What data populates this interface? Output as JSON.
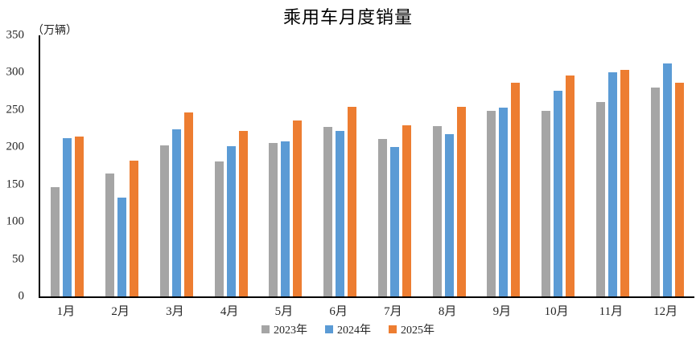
{
  "title": "乘用车月度销量",
  "axis_color": "#000000",
  "chart_data": {
    "type": "bar",
    "title": "乘用车月度销量",
    "ylabel": "（万辆）",
    "xlabel": "",
    "ylim": [
      0,
      350
    ],
    "yticks": [
      0,
      50,
      100,
      150,
      200,
      250,
      300,
      350
    ],
    "grid": false,
    "legend_position": "bottom",
    "categories": [
      "1月",
      "2月",
      "3月",
      "4月",
      "5月",
      "6月",
      "7月",
      "8月",
      "9月",
      "10月",
      "11月",
      "12月"
    ],
    "series": [
      {
        "name": "2023年",
        "color": "#A5A5A5",
        "values": [
          147,
          165,
          202,
          181,
          206,
          227,
          211,
          228,
          249,
          249,
          261,
          280
        ]
      },
      {
        "name": "2024年",
        "color": "#5B9BD5",
        "values": [
          212,
          133,
          224,
          201,
          208,
          222,
          200,
          218,
          253,
          276,
          300,
          312
        ]
      },
      {
        "name": "2025年",
        "color": "#ED7D31",
        "values": [
          214,
          182,
          247,
          222,
          236,
          254,
          229,
          254,
          287,
          296,
          304,
          286
        ]
      }
    ]
  }
}
